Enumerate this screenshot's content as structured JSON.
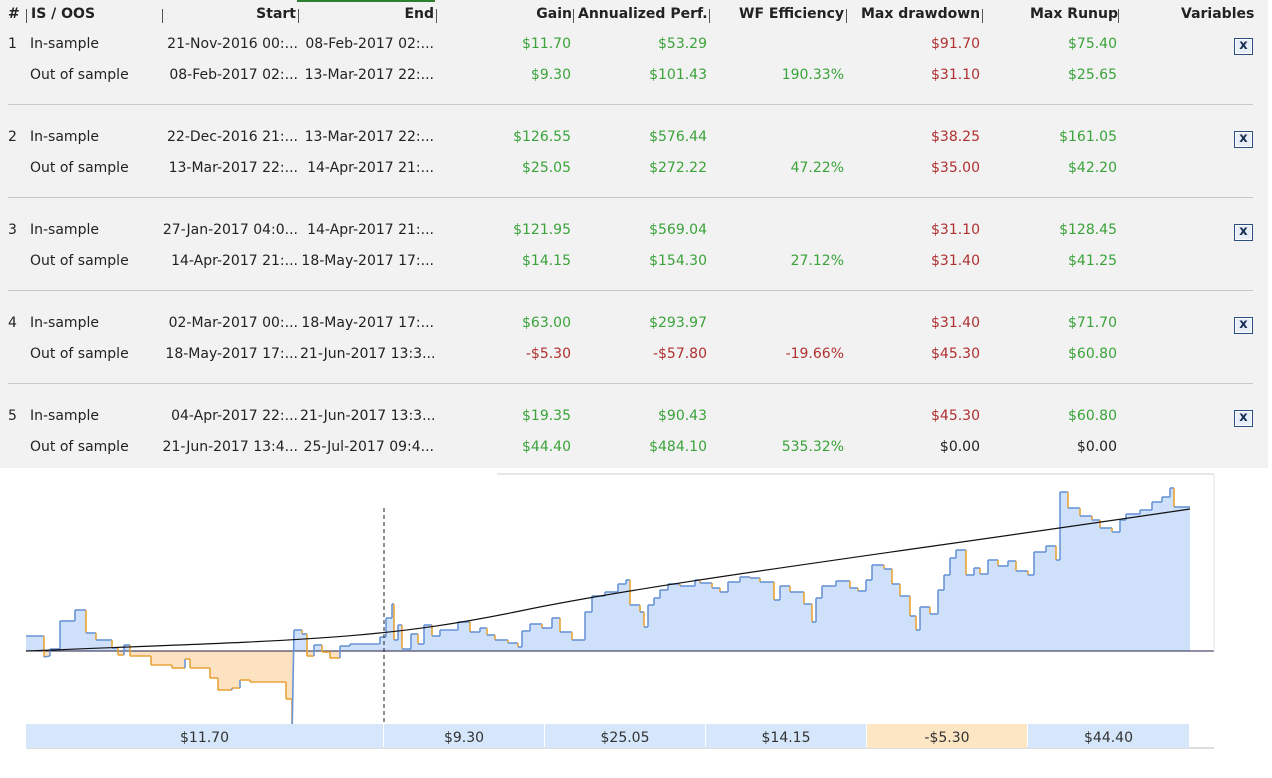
{
  "columns": {
    "num": "#",
    "isoos": "IS / OOS",
    "start": "Start",
    "end": "End",
    "gain": "Gain",
    "annualized": "Annualized Perf.",
    "wf": "WF Efficiency",
    "dd": "Max drawdown",
    "runup": "Max Runup",
    "variables": "Variables"
  },
  "rows": [
    {
      "num": "1",
      "is": {
        "label": "In-sample",
        "start": "21-Nov-2016 00:...",
        "end": "08-Feb-2017 02:...",
        "gain": "$11.70",
        "annual": "$53.29",
        "wf": "",
        "dd": "$91.70",
        "runup": "$75.40"
      },
      "oos": {
        "label": "Out of sample",
        "start": "08-Feb-2017 02:...",
        "end": "13-Mar-2017 22:...",
        "gain": "$9.30",
        "annual": "$101.43",
        "wf": "190.33%",
        "dd": "$31.10",
        "runup": "$25.65"
      }
    },
    {
      "num": "2",
      "is": {
        "label": "In-sample",
        "start": "22-Dec-2016 21:...",
        "end": "13-Mar-2017 22:...",
        "gain": "$126.55",
        "annual": "$576.44",
        "wf": "",
        "dd": "$38.25",
        "runup": "$161.05"
      },
      "oos": {
        "label": "Out of sample",
        "start": "13-Mar-2017 22:...",
        "end": "14-Apr-2017 21:...",
        "gain": "$25.05",
        "annual": "$272.22",
        "wf": "47.22%",
        "dd": "$35.00",
        "runup": "$42.20"
      }
    },
    {
      "num": "3",
      "is": {
        "label": "In-sample",
        "start": "27-Jan-2017 04:0...",
        "end": "14-Apr-2017 21:...",
        "gain": "$121.95",
        "annual": "$569.04",
        "wf": "",
        "dd": "$31.10",
        "runup": "$128.45"
      },
      "oos": {
        "label": "Out of sample",
        "start": "14-Apr-2017 21:...",
        "end": "18-May-2017 17:...",
        "gain": "$14.15",
        "annual": "$154.30",
        "wf": "27.12%",
        "dd": "$31.40",
        "runup": "$41.25"
      }
    },
    {
      "num": "4",
      "is": {
        "label": "In-sample",
        "start": "02-Mar-2017 00:...",
        "end": "18-May-2017 17:...",
        "gain": "$63.00",
        "annual": "$293.97",
        "wf": "",
        "dd": "$31.40",
        "runup": "$71.70"
      },
      "oos": {
        "label": "Out of sample",
        "start": "18-May-2017 17:...",
        "end": "21-Jun-2017 13:3...",
        "gain": "-$5.30",
        "annual": "-$57.80",
        "wf": "-19.66%",
        "dd": "$45.30",
        "runup": "$60.80"
      }
    },
    {
      "num": "5",
      "is": {
        "label": "In-sample",
        "start": "04-Apr-2017 22:...",
        "end": "21-Jun-2017 13:3...",
        "gain": "$19.35",
        "annual": "$90.43",
        "wf": "",
        "dd": "$45.30",
        "runup": "$60.80"
      },
      "oos": {
        "label": "Out of sample",
        "start": "21-Jun-2017 13:4...",
        "end": "25-Jul-2017 09:4...",
        "gain": "$44.40",
        "annual": "$484.10",
        "wf": "535.32%",
        "dd": "$0.00",
        "runup": "$0.00"
      }
    }
  ],
  "variables_icon": "x-variables-icon",
  "variables_icon_text": "x",
  "chart_data": {
    "type": "area",
    "segment_labels": [
      "$11.70",
      "$9.30",
      "$25.05",
      "$14.15",
      "-$5.30",
      "$44.40"
    ],
    "segment_colors": [
      "#d6e6fb",
      "#d6e6fb",
      "#d6e6fb",
      "#d6e6fb",
      "#fde6c4",
      "#d6e6fb"
    ],
    "colors": {
      "positive_fill": "#cfe0fb",
      "negative_fill": "#fde2c2",
      "rising_line": "#6a95d6",
      "falling_line": "#e8a33a",
      "trend": "#111111",
      "baseline": "#222244",
      "divider": "#222222"
    }
  },
  "colors": {
    "gain_positive": "#3aa33a",
    "loss": "#b03030",
    "header_accent": "#2e7d32",
    "panel_bg": "#f2f2f2"
  }
}
